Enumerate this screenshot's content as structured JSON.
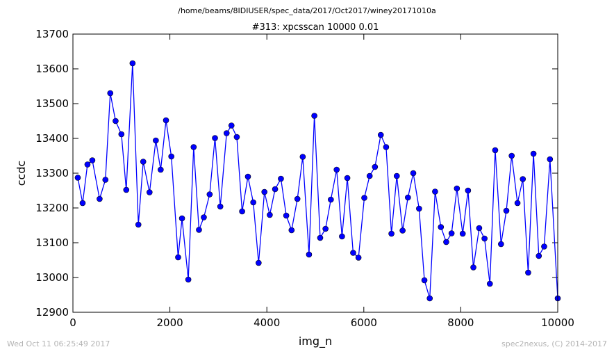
{
  "suptitle": "/home/beams/8IDIUSER/spec_data/2017/Oct2017/winey20171010a",
  "footer": {
    "left": "Wed Oct 11 06:25:49 2017",
    "right": "spec2nexus, (C) 2014-2017"
  },
  "colors": {
    "line": "#0000ff",
    "marker": "#0000ff",
    "marker_edge": "#000000"
  },
  "chart_data": {
    "type": "line",
    "title": "#313: xpcsscan 10000 0.01",
    "xlabel": "img_n",
    "ylabel": "ccdc",
    "xlim": [
      0,
      10000
    ],
    "ylim": [
      12900,
      13700
    ],
    "xticks": [
      0,
      2000,
      4000,
      6000,
      8000,
      10000
    ],
    "yticks": [
      12900,
      13000,
      13100,
      13200,
      13300,
      13400,
      13500,
      13600,
      13700
    ],
    "grid": false,
    "marker": "circle",
    "x": [
      100,
      200,
      300,
      400,
      550,
      670,
      770,
      880,
      1000,
      1100,
      1230,
      1350,
      1450,
      1580,
      1710,
      1810,
      1920,
      2030,
      2170,
      2250,
      2380,
      2490,
      2600,
      2700,
      2820,
      2930,
      3040,
      3170,
      3270,
      3380,
      3490,
      3610,
      3720,
      3830,
      3950,
      4060,
      4170,
      4290,
      4400,
      4510,
      4630,
      4740,
      4870,
      4980,
      5100,
      5210,
      5320,
      5440,
      5550,
      5660,
      5780,
      5890,
      6010,
      6120,
      6230,
      6350,
      6460,
      6570,
      6680,
      6800,
      6910,
      7020,
      7140,
      7250,
      7360,
      7470,
      7590,
      7700,
      7810,
      7920,
      8040,
      8150,
      8260,
      8380,
      8490,
      8600,
      8710,
      8830,
      8940,
      9050,
      9170,
      9280,
      9390,
      9500,
      9610,
      9720,
      9840,
      10000
    ],
    "values": [
      13287,
      13214,
      13325,
      13337,
      13226,
      13281,
      13530,
      13450,
      13412,
      13252,
      13616,
      13152,
      13333,
      13245,
      13394,
      13310,
      13452,
      13348,
      13058,
      13170,
      12994,
      13375,
      13137,
      13173,
      13239,
      13401,
      13204,
      13415,
      13437,
      13404,
      13190,
      13290,
      13216,
      13042,
      13246,
      13180,
      13254,
      13284,
      13178,
      13136,
      13226,
      13347,
      13066,
      13465,
      13114,
      13140,
      13224,
      13310,
      13118,
      13286,
      13071,
      13057,
      13229,
      13292,
      13318,
      13410,
      13375,
      13126,
      13292,
      13135,
      13230,
      13300,
      13198,
      12992,
      12940,
      13247,
      13145,
      13102,
      13127,
      13256,
      13126,
      13250,
      13029,
      13142,
      13112,
      12982,
      13366,
      13096,
      13192,
      13350,
      13214,
      13283,
      13014,
      13356,
      13062,
      13089,
      13340,
      12940
    ]
  }
}
